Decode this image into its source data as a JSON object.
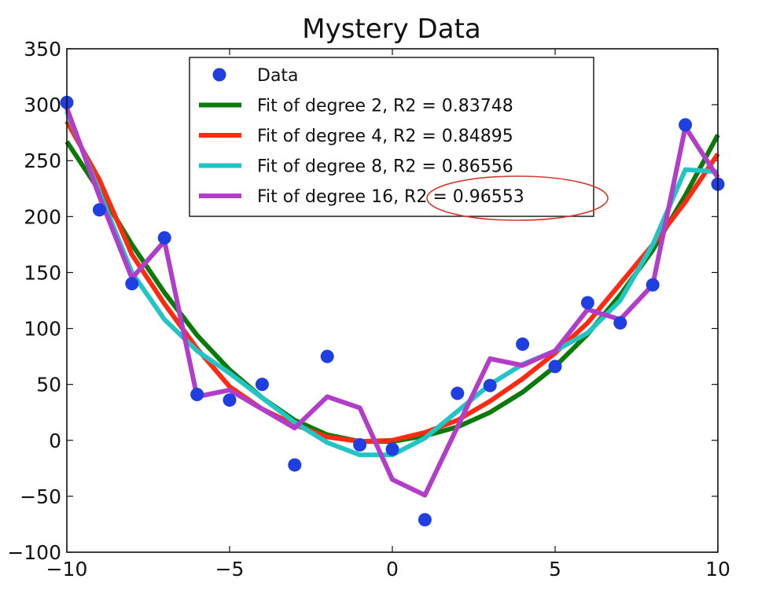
{
  "chart_data": {
    "type": "line",
    "title": "Mystery Data",
    "xlabel": "",
    "ylabel": "",
    "xlim": [
      -10,
      10
    ],
    "ylim": [
      -100,
      350
    ],
    "x_ticks": [
      -10,
      -5,
      0,
      5,
      10
    ],
    "x_tick_labels": [
      "−10",
      "−5",
      "0",
      "5",
      "10"
    ],
    "y_ticks": [
      -100,
      -50,
      0,
      50,
      100,
      150,
      200,
      250,
      300,
      350
    ],
    "y_tick_labels": [
      "−100",
      "−50",
      "0",
      "50",
      "100",
      "150",
      "200",
      "250",
      "300",
      "350"
    ],
    "grid": false,
    "legend_position": "top-center",
    "scatter": {
      "name": "Data",
      "color": "#1f3fe0",
      "x": [
        -10,
        -9,
        -8,
        -7,
        -6,
        -5,
        -4,
        -3,
        -2,
        -1,
        0,
        1,
        2,
        3,
        4,
        5,
        6,
        7,
        8,
        9,
        10
      ],
      "y": [
        302,
        206,
        140,
        181,
        41,
        36,
        50,
        -22,
        75,
        -4,
        -8,
        -71,
        42,
        49,
        86,
        66,
        123,
        105,
        139,
        282,
        229
      ]
    },
    "series": [
      {
        "name": "Fit of degree 2, R2 = 0.83748",
        "color": "#0a7a0a",
        "x": [
          -10,
          -9,
          -8,
          -7,
          -6,
          -5,
          -4,
          -3,
          -2,
          -1,
          0,
          1,
          2,
          3,
          4,
          5,
          6,
          7,
          8,
          9,
          10
        ],
        "y": [
          267,
          223,
          175,
          132,
          94,
          63,
          38,
          18,
          5,
          -1,
          -1,
          4,
          12,
          25,
          43,
          66,
          95,
          130,
          170,
          219,
          273
        ]
      },
      {
        "name": "Fit of degree 4, R2 = 0.84895",
        "color": "#ff2a12",
        "x": [
          -10,
          -9,
          -8,
          -7,
          -6,
          -5,
          -4,
          -3,
          -2,
          -1,
          0,
          1,
          2,
          3,
          4,
          5,
          6,
          7,
          8,
          9,
          10
        ],
        "y": [
          285,
          233,
          166,
          122,
          82,
          48,
          28,
          14,
          3,
          -1,
          0,
          7,
          18,
          35,
          55,
          78,
          105,
          140,
          175,
          213,
          256
        ]
      },
      {
        "name": "Fit of degree 8, R2 = 0.86556",
        "color": "#22c4c4",
        "x": [
          -10,
          -9,
          -8,
          -7,
          -6,
          -5,
          -4,
          -3,
          -2,
          -1,
          0,
          1,
          2,
          3,
          4,
          5,
          6,
          7,
          8,
          9,
          10
        ],
        "y": [
          294,
          222,
          150,
          108,
          80,
          60,
          38,
          16,
          -2,
          -13,
          -13,
          2,
          26,
          50,
          68,
          80,
          96,
          125,
          175,
          242,
          240
        ]
      },
      {
        "name": "Fit of degree 16, R2 = 0.96553",
        "color": "#b13dc8",
        "x": [
          -10,
          -9,
          -8,
          -7,
          -6,
          -5,
          -4,
          -3,
          -2,
          -1,
          0,
          1,
          2,
          3,
          4,
          5,
          6,
          7,
          8,
          9,
          10
        ],
        "y": [
          297,
          218,
          145,
          178,
          39,
          45,
          28,
          11,
          39,
          29,
          -35,
          -49,
          12,
          73,
          67,
          80,
          117,
          108,
          139,
          280,
          235
        ]
      }
    ],
    "annotation": {
      "type": "ellipse",
      "highlights": "R2 = 0.96553",
      "color": "#d23b2f"
    }
  }
}
